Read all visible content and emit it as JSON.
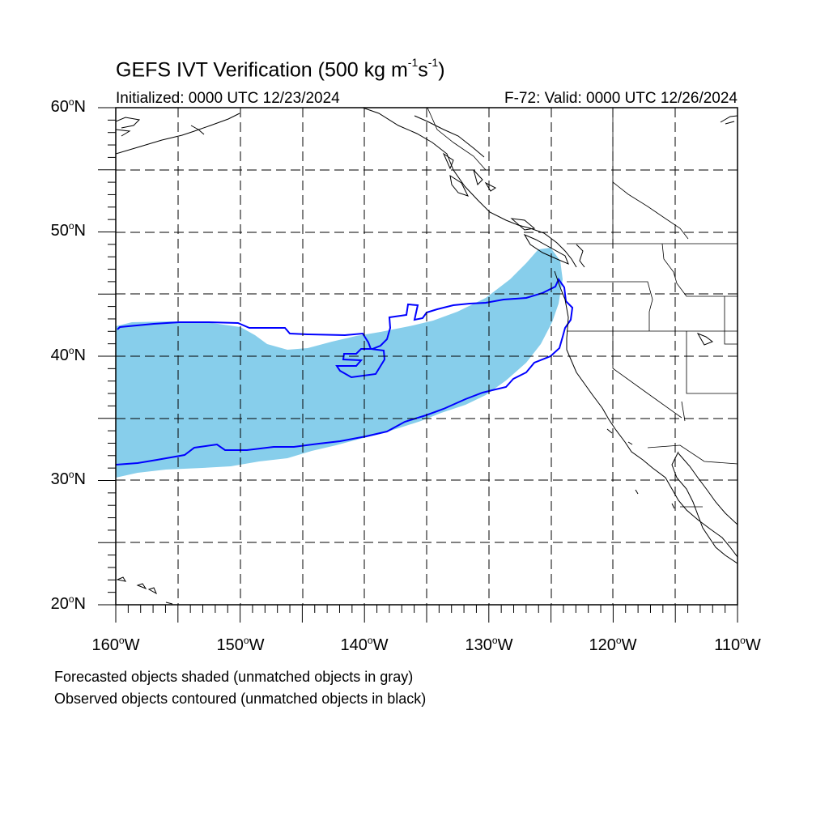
{
  "header": {
    "title_main": "GEFS IVT Verification (500 kg m",
    "title_exp1": "-1",
    "title_mid": "s",
    "title_exp2": "-1",
    "title_end": ")",
    "initialized": "Initialized: 0000 UTC 12/23/2024",
    "valid": "F-72: Valid: 0000 UTC 12/26/2024"
  },
  "axes": {
    "lat_labels": [
      "60",
      "50",
      "40",
      "30",
      "20"
    ],
    "lat_suffix": "N",
    "lon_labels": [
      "160",
      "150",
      "140",
      "130",
      "120",
      "110"
    ],
    "lon_suffix": "W",
    "degree_symbol": "o"
  },
  "map": {
    "lat_range": [
      20,
      60
    ],
    "lon_range": [
      -160,
      -110
    ],
    "gridlines": "dashed every 5 degrees",
    "forecast_color": "#87ceeb",
    "observed_color": "#0000ff",
    "coastline_color": "#000000"
  },
  "notes": {
    "forecast": "Forecasted objects shaded (unmatched objects in gray)",
    "observed": "Observed objects contoured (unmatched objects in black)"
  }
}
